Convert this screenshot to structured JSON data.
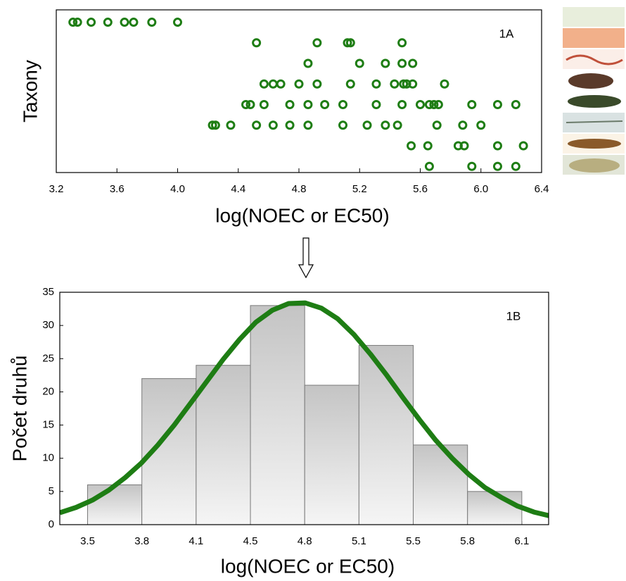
{
  "chart_data": [
    {
      "type": "scatter",
      "annotation": "1A",
      "x_label": "log(NOEC or EC50)",
      "y_label": "Taxony",
      "color": "#1e7d14",
      "x": [
        3.31,
        3.34,
        3.43,
        3.54,
        3.65,
        3.71,
        3.83,
        4.0,
        4.52,
        4.92,
        5.12,
        5.14,
        5.48,
        4.86,
        5.2,
        5.37,
        5.48,
        5.55,
        4.57,
        4.63,
        4.68,
        4.8,
        4.92,
        5.14,
        5.31,
        5.43,
        5.49,
        5.51,
        5.55,
        5.76,
        4.45,
        4.48,
        4.57,
        4.74,
        4.86,
        4.97,
        5.09,
        5.31,
        5.48,
        5.6,
        5.66,
        5.69,
        5.72,
        5.94,
        6.11,
        6.23,
        4.23,
        4.25,
        4.35,
        4.52,
        4.63,
        4.74,
        4.86,
        5.09,
        5.25,
        5.37,
        5.45,
        5.71,
        5.88,
        6.0,
        5.54,
        5.65,
        5.85,
        5.89,
        6.11,
        6.28,
        5.66,
        5.94,
        6.11,
        6.23
      ],
      "values": [
        1,
        1,
        1,
        1,
        1,
        1,
        1,
        1,
        2,
        2,
        2,
        2,
        2,
        3,
        3,
        3,
        3,
        3,
        4,
        4,
        4,
        4,
        4,
        4,
        4,
        4,
        4,
        4,
        4,
        4,
        5,
        5,
        5,
        5,
        5,
        5,
        5,
        5,
        5,
        5,
        5,
        5,
        5,
        5,
        5,
        5,
        6,
        6,
        6,
        6,
        6,
        6,
        6,
        6,
        6,
        6,
        6,
        6,
        6,
        6,
        7,
        7,
        7,
        7,
        7,
        7,
        8,
        8,
        8,
        8
      ],
      "xlim": [
        3.2,
        6.4
      ],
      "xticks": [
        3.2,
        3.6,
        {
          "value": 4,
          "label": "4.0"
        },
        4.4,
        4.8,
        5.2,
        5.6,
        {
          "value": 6,
          "label": "6.0"
        },
        6.4
      ],
      "ylim": [
        0.4,
        8.3
      ],
      "y_inverted": true
    },
    {
      "type": "histogram",
      "annotation": "1B",
      "x_label": "log(NOEC or EC50)",
      "y_label": "Počet druhů",
      "bins": [
        3.47,
        3.802,
        4.134,
        4.466,
        4.798,
        5.13,
        5.462,
        5.794,
        6.126
      ],
      "values": [
        6,
        22,
        24,
        33,
        21,
        27,
        12,
        5
      ],
      "xlim": [
        3.3,
        6.29
      ],
      "xticks": [
        {
          "value": 3.47,
          "label": "3.5"
        },
        {
          "value": 3.802,
          "label": "3.8"
        },
        {
          "value": 4.134,
          "label": "4.1"
        },
        {
          "value": 4.466,
          "label": "4.5"
        },
        {
          "value": 4.798,
          "label": "4.8"
        },
        {
          "value": 5.13,
          "label": "5.1"
        },
        {
          "value": 5.462,
          "label": "5.5"
        },
        {
          "value": 5.794,
          "label": "5.8"
        },
        {
          "value": 6.126,
          "label": "6.1"
        }
      ],
      "ylim": [
        0,
        35
      ],
      "yticks": [
        0,
        5,
        10,
        15,
        20,
        25,
        30,
        35
      ],
      "curve": {
        "color": "#1e7d14",
        "x": [
          3.3,
          3.4,
          3.5,
          3.6,
          3.7,
          3.8,
          3.9,
          4.0,
          4.1,
          4.2,
          4.3,
          4.4,
          4.5,
          4.6,
          4.7,
          4.8,
          4.9,
          5.0,
          5.1,
          5.2,
          5.3,
          5.4,
          5.5,
          5.6,
          5.7,
          5.8,
          5.9,
          6.0,
          6.1,
          6.2,
          6.3
        ],
        "values": [
          1.8,
          2.6,
          3.7,
          5.2,
          7.1,
          9.3,
          12.0,
          15.0,
          18.3,
          21.6,
          24.9,
          27.9,
          30.5,
          32.3,
          33.3,
          33.4,
          32.6,
          31.0,
          28.6,
          25.7,
          22.5,
          19.1,
          15.8,
          12.7,
          10.0,
          7.6,
          5.6,
          4.1,
          2.8,
          1.9,
          1.3
        ]
      }
    }
  ]
}
